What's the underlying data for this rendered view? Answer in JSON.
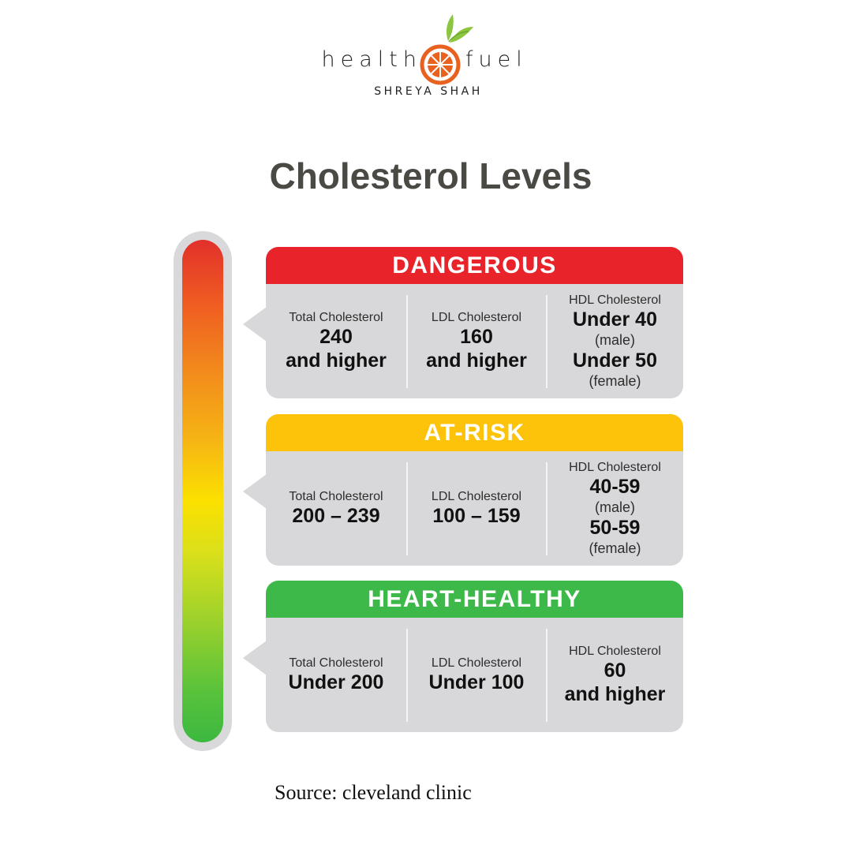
{
  "logo": {
    "left_word": "health",
    "right_word": "fuel",
    "subtitle": "SHREYA SHAH",
    "colors": {
      "orange": "#e8611f",
      "leaf": "#8cc63f"
    }
  },
  "title": "Cholesterol Levels",
  "gauge": {
    "top_color": "#e1302a",
    "middle_color": "#fbe100",
    "bottom_color": "#3cb840"
  },
  "levels": [
    {
      "name": "DANGEROUS",
      "color": "#e8232a",
      "total": {
        "label": "Total Cholesterol",
        "line1": "240",
        "line2": "and higher"
      },
      "ldl": {
        "label": "LDL Cholesterol",
        "line1": "160",
        "line2": "and higher"
      },
      "hdl": {
        "label": "HDL Cholesterol",
        "male_value": "Under 40",
        "male_note": "(male)",
        "female_value": "Under 50",
        "female_note": "(female)"
      }
    },
    {
      "name": "AT-RISK",
      "color": "#fcc30a",
      "total": {
        "label": "Total Cholesterol",
        "line1": "200 – 239"
      },
      "ldl": {
        "label": "LDL Cholesterol",
        "line1": "100 – 159"
      },
      "hdl": {
        "label": "HDL Cholesterol",
        "male_value": "40-59",
        "male_note": "(male)",
        "female_value": "50-59",
        "female_note": "(female)"
      }
    },
    {
      "name": "HEART-HEALTHY",
      "color": "#3db94a",
      "total": {
        "label": "Total Cholesterol",
        "line1": "Under 200"
      },
      "ldl": {
        "label": "LDL Cholesterol",
        "line1": "Under 100"
      },
      "hdl": {
        "label": "HDL Cholesterol",
        "line1": "60",
        "line2": "and higher"
      }
    }
  ],
  "source": "Source: cleveland clinic"
}
